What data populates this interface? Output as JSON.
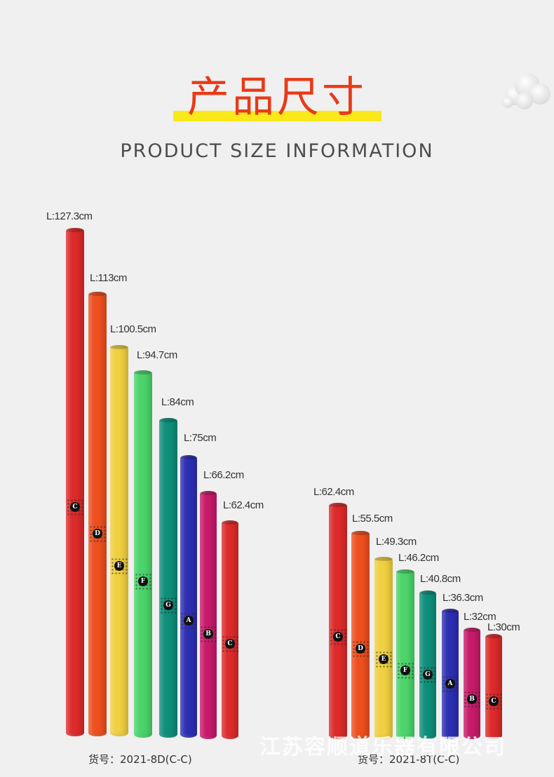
{
  "header": {
    "title_cn": "产品尺寸",
    "title_en": "PRODUCT SIZE INFORMATION"
  },
  "set_large": {
    "model": "货号：2021-8D(C-C)",
    "tubes": [
      {
        "note": "C",
        "length": "L:127.3cm",
        "color": "#dd2a2a"
      },
      {
        "note": "D",
        "length": "L:113cm",
        "color": "#ee4f1f"
      },
      {
        "note": "E",
        "length": "L:100.5cm",
        "color": "#f0d040"
      },
      {
        "note": "F",
        "length": "L:94.7cm",
        "color": "#4bd46a"
      },
      {
        "note": "G",
        "length": "L:84cm",
        "color": "#0e8f7a"
      },
      {
        "note": "A",
        "length": "L:75cm",
        "color": "#2d2fb3"
      },
      {
        "note": "B",
        "length": "L:66.2cm",
        "color": "#c81a6a"
      },
      {
        "note": "C",
        "length": "L:62.4cm",
        "color": "#dd2a2a"
      }
    ]
  },
  "set_small": {
    "model": "货号：2021-8T(C-C)",
    "tubes": [
      {
        "note": "C",
        "length": "L:62.4cm",
        "color": "#dd2a2a"
      },
      {
        "note": "D",
        "length": "L:55.5cm",
        "color": "#ee4f1f"
      },
      {
        "note": "E",
        "length": "L:49.3cm",
        "color": "#f0d040"
      },
      {
        "note": "F",
        "length": "L:46.2cm",
        "color": "#4bd46a"
      },
      {
        "note": "G",
        "length": "L:40.8cm",
        "color": "#0e8f7a"
      },
      {
        "note": "A",
        "length": "L:36.3cm",
        "color": "#2d2fb3"
      },
      {
        "note": "B",
        "length": "L:32cm",
        "color": "#c81a6a"
      },
      {
        "note": "C",
        "length": "L:30cm",
        "color": "#dd2a2a"
      }
    ]
  },
  "watermark": "江苏容顺道乐器有限公司"
}
